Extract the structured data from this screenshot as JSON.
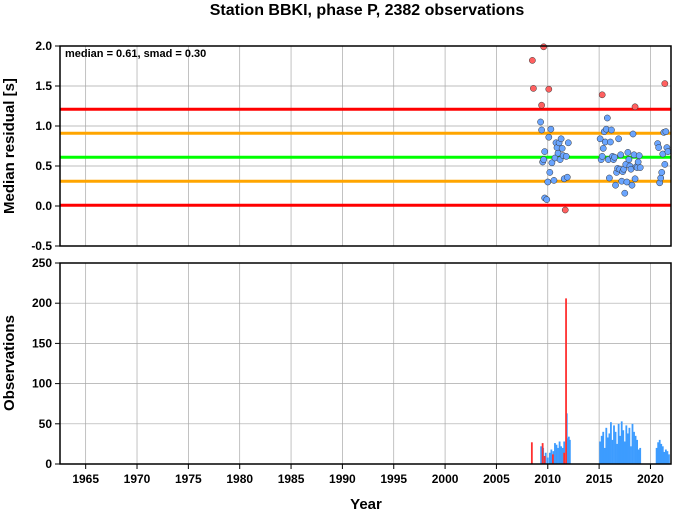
{
  "chart_data": [
    {
      "type": "scatter",
      "title": "Station BBKI, phase P, 2382 observations",
      "ylabel": "Median residual [s]",
      "annotation": "median = 0.61, smad = 0.30",
      "xlim": [
        1962.5,
        2022.0
      ],
      "ylim": [
        -0.5,
        2.0
      ],
      "yticks": [
        -0.5,
        0.0,
        0.5,
        1.0,
        1.5,
        2.0
      ],
      "ytick_labels": [
        "-0.5",
        "0.0",
        "0.5",
        "1.0",
        "1.5",
        "2.0"
      ],
      "grid": true,
      "hlines": [
        {
          "y": 1.21,
          "color": "#ff0000"
        },
        {
          "y": 0.91,
          "color": "#ffa500"
        },
        {
          "y": 0.61,
          "color": "#00ff00"
        },
        {
          "y": 0.31,
          "color": "#ffa500"
        },
        {
          "y": 0.01,
          "color": "#ff0000"
        }
      ],
      "series": [
        {
          "color": "#ff6060",
          "points": [
            [
              2008.5,
              1.82
            ],
            [
              2008.6,
              1.47
            ],
            [
              2009.4,
              1.26
            ],
            [
              2009.6,
              1.99
            ],
            [
              2010.1,
              1.46
            ],
            [
              2011.7,
              -0.05
            ],
            [
              2015.3,
              1.39
            ],
            [
              2018.5,
              1.24
            ],
            [
              2021.4,
              1.53
            ]
          ]
        },
        {
          "color": "#6aa5ff",
          "points": [
            [
              2009.3,
              1.05
            ],
            [
              2009.4,
              0.95
            ],
            [
              2009.5,
              0.55
            ],
            [
              2009.6,
              0.58
            ],
            [
              2009.7,
              0.68
            ],
            [
              2009.7,
              0.1
            ],
            [
              2009.9,
              0.08
            ],
            [
              2010.0,
              0.3
            ],
            [
              2010.1,
              0.86
            ],
            [
              2010.2,
              0.42
            ],
            [
              2010.3,
              0.96
            ],
            [
              2010.4,
              0.54
            ],
            [
              2010.6,
              0.32
            ],
            [
              2010.7,
              0.6
            ],
            [
              2010.8,
              0.79
            ],
            [
              2010.9,
              0.73
            ],
            [
              2011.0,
              0.66
            ],
            [
              2011.1,
              0.79
            ],
            [
              2011.2,
              0.58
            ],
            [
              2011.3,
              0.84
            ],
            [
              2011.4,
              0.72
            ],
            [
              2011.5,
              0.63
            ],
            [
              2011.6,
              0.34
            ],
            [
              2011.8,
              0.62
            ],
            [
              2011.9,
              0.36
            ],
            [
              2012.0,
              0.79
            ],
            [
              2015.1,
              0.84
            ],
            [
              2015.2,
              0.58
            ],
            [
              2015.3,
              0.62
            ],
            [
              2015.4,
              0.72
            ],
            [
              2015.5,
              0.93
            ],
            [
              2015.6,
              0.8
            ],
            [
              2015.7,
              0.96
            ],
            [
              2015.8,
              1.1
            ],
            [
              2015.9,
              0.58
            ],
            [
              2016.0,
              0.35
            ],
            [
              2016.1,
              0.8
            ],
            [
              2016.2,
              0.95
            ],
            [
              2016.3,
              0.62
            ],
            [
              2016.4,
              0.58
            ],
            [
              2016.5,
              0.61
            ],
            [
              2016.6,
              0.26
            ],
            [
              2016.7,
              0.42
            ],
            [
              2016.8,
              0.47
            ],
            [
              2016.9,
              0.84
            ],
            [
              2017.0,
              0.46
            ],
            [
              2017.1,
              0.64
            ],
            [
              2017.2,
              0.31
            ],
            [
              2017.3,
              0.43
            ],
            [
              2017.4,
              0.46
            ],
            [
              2017.5,
              0.16
            ],
            [
              2017.6,
              0.52
            ],
            [
              2017.7,
              0.3
            ],
            [
              2017.8,
              0.67
            ],
            [
              2017.9,
              0.58
            ],
            [
              2018.0,
              0.5
            ],
            [
              2018.1,
              0.46
            ],
            [
              2018.2,
              0.26
            ],
            [
              2018.3,
              0.9
            ],
            [
              2018.4,
              0.64
            ],
            [
              2018.5,
              0.34
            ],
            [
              2018.6,
              0.49
            ],
            [
              2018.7,
              0.48
            ],
            [
              2018.8,
              0.55
            ],
            [
              2018.9,
              0.63
            ],
            [
              2019.0,
              0.48
            ],
            [
              2020.7,
              0.78
            ],
            [
              2020.8,
              0.73
            ],
            [
              2020.9,
              0.29
            ],
            [
              2021.0,
              0.35
            ],
            [
              2021.1,
              0.42
            ],
            [
              2021.2,
              0.65
            ],
            [
              2021.3,
              0.92
            ],
            [
              2021.4,
              0.52
            ],
            [
              2021.5,
              0.93
            ],
            [
              2021.6,
              0.73
            ],
            [
              2021.7,
              0.68
            ]
          ]
        }
      ]
    },
    {
      "type": "bar",
      "xlabel": "Year",
      "ylabel": "Observations",
      "xlim": [
        1962.5,
        2022.0
      ],
      "ylim": [
        0,
        250
      ],
      "yticks": [
        0,
        50,
        100,
        150,
        200,
        250
      ],
      "ytick_labels": [
        "0",
        "50",
        "100",
        "150",
        "200",
        "250"
      ],
      "xticks": [
        1965,
        1970,
        1975,
        1980,
        1985,
        1990,
        1995,
        2000,
        2005,
        2010,
        2015,
        2020
      ],
      "xtick_labels": [
        "1965",
        "1970",
        "1975",
        "1980",
        "1985",
        "1990",
        "1995",
        "2000",
        "2005",
        "2010",
        "2015",
        "2020"
      ],
      "grid": true,
      "series": [
        {
          "color": "#ff3030",
          "bars": [
            [
              2008.45,
              27
            ],
            [
              2009.5,
              26
            ],
            [
              2009.7,
              10
            ],
            [
              2010.5,
              12
            ],
            [
              2011.6,
              14
            ],
            [
              2011.78,
              206
            ]
          ]
        },
        {
          "color": "#3d9cff",
          "bars": [
            [
              2009.35,
              22
            ],
            [
              2009.55,
              20
            ],
            [
              2009.8,
              14
            ],
            [
              2010.0,
              8
            ],
            [
              2010.2,
              14
            ],
            [
              2010.35,
              18
            ],
            [
              2010.55,
              16
            ],
            [
              2010.7,
              26
            ],
            [
              2010.85,
              24
            ],
            [
              2011.0,
              20
            ],
            [
              2011.15,
              28
            ],
            [
              2011.3,
              22
            ],
            [
              2011.45,
              20
            ],
            [
              2011.6,
              28
            ],
            [
              2011.85,
              63
            ],
            [
              2011.95,
              32
            ],
            [
              2012.05,
              34
            ],
            [
              2012.15,
              30
            ],
            [
              2015.1,
              28
            ],
            [
              2015.25,
              35
            ],
            [
              2015.4,
              40
            ],
            [
              2015.55,
              20
            ],
            [
              2015.7,
              45
            ],
            [
              2015.85,
              33
            ],
            [
              2016.0,
              38
            ],
            [
              2016.15,
              52
            ],
            [
              2016.3,
              30
            ],
            [
              2016.45,
              48
            ],
            [
              2016.6,
              40
            ],
            [
              2016.75,
              25
            ],
            [
              2016.9,
              50
            ],
            [
              2017.05,
              35
            ],
            [
              2017.2,
              53
            ],
            [
              2017.35,
              42
            ],
            [
              2017.5,
              28
            ],
            [
              2017.65,
              48
            ],
            [
              2017.8,
              38
            ],
            [
              2017.95,
              45
            ],
            [
              2018.1,
              22
            ],
            [
              2018.25,
              50
            ],
            [
              2018.4,
              40
            ],
            [
              2018.55,
              35
            ],
            [
              2018.7,
              30
            ],
            [
              2018.85,
              18
            ],
            [
              2019.0,
              20
            ],
            [
              2020.6,
              20
            ],
            [
              2020.75,
              27
            ],
            [
              2020.9,
              30
            ],
            [
              2021.05,
              25
            ],
            [
              2021.2,
              22
            ],
            [
              2021.35,
              15
            ],
            [
              2021.5,
              18
            ],
            [
              2021.65,
              16
            ],
            [
              2021.8,
              12
            ]
          ]
        }
      ]
    }
  ]
}
